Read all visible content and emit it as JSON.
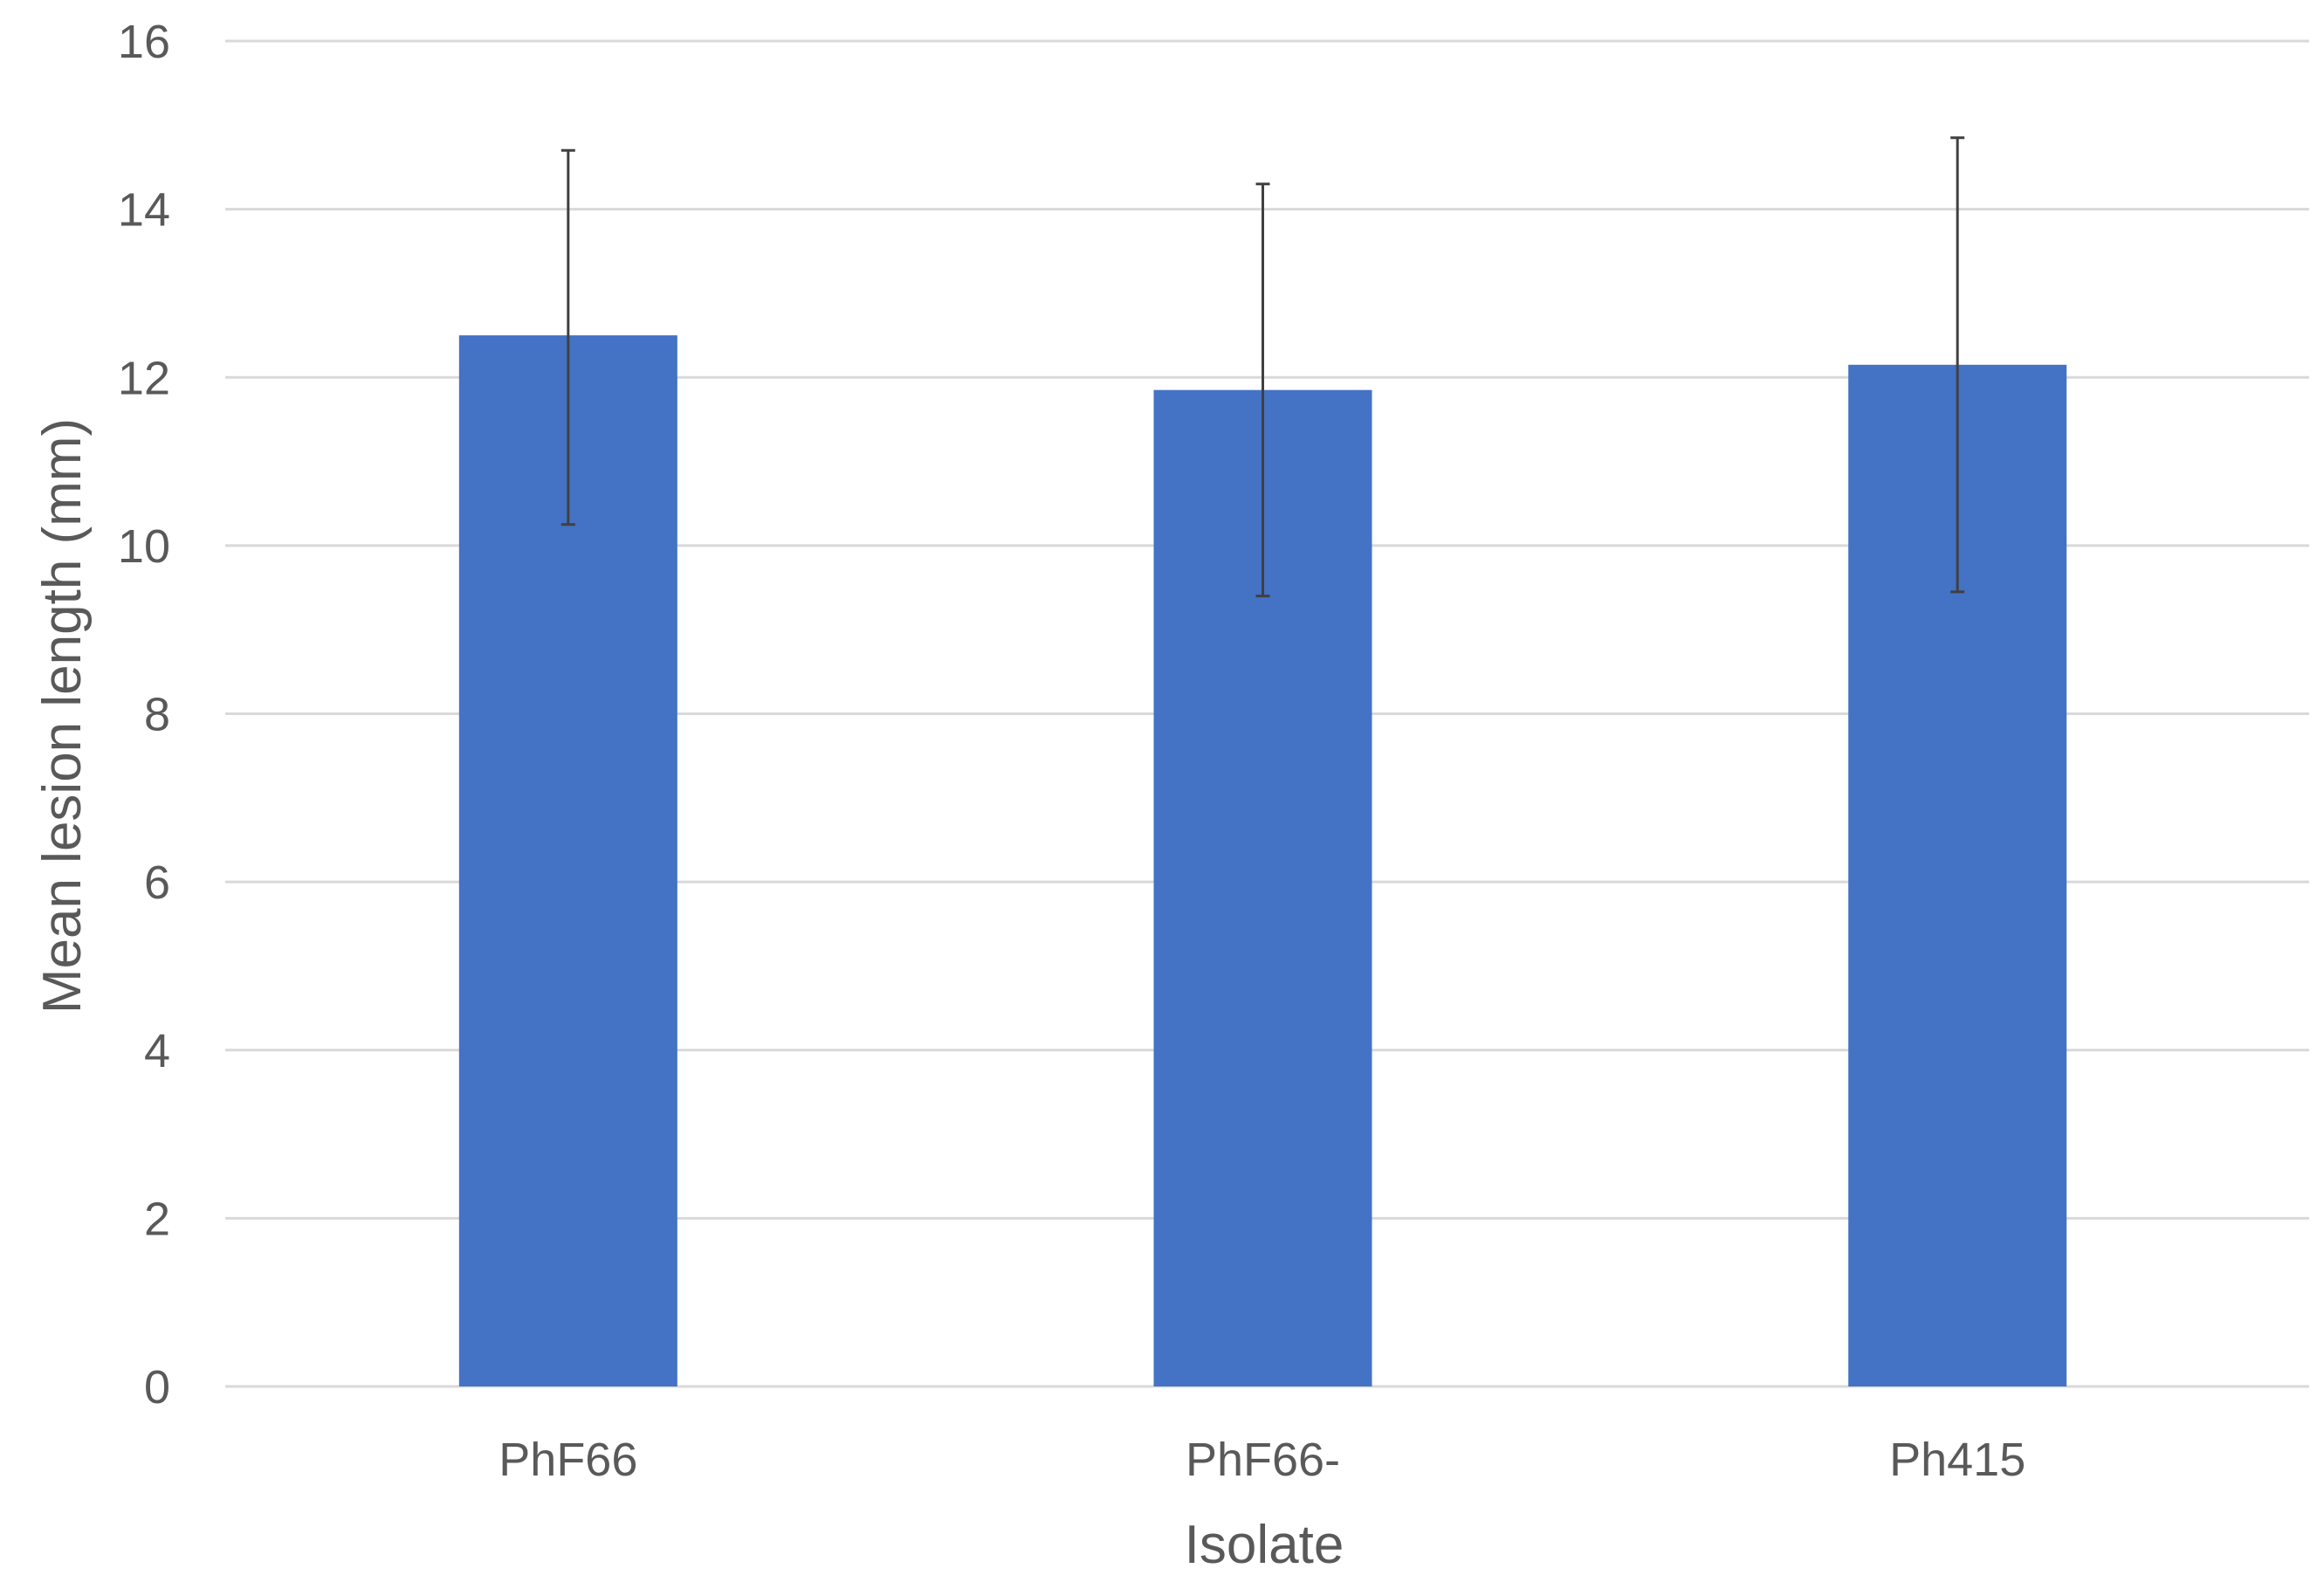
{
  "chart_data": {
    "type": "bar",
    "title": "",
    "xlabel": "Isolate",
    "ylabel": "Mean lesion length (mm)",
    "categories": [
      "PhF66",
      "PhF66-",
      "Ph415"
    ],
    "values": [
      12.5,
      11.85,
      12.15
    ],
    "error_low": [
      10.25,
      9.4,
      9.45
    ],
    "error_high": [
      14.7,
      14.3,
      14.85
    ],
    "ylim": [
      0,
      16
    ],
    "yticks": [
      "0",
      "2",
      "4",
      "6",
      "8",
      "10",
      "12",
      "14",
      "16"
    ],
    "grid": true,
    "legend": "none",
    "bar_color": "#4472c4"
  }
}
